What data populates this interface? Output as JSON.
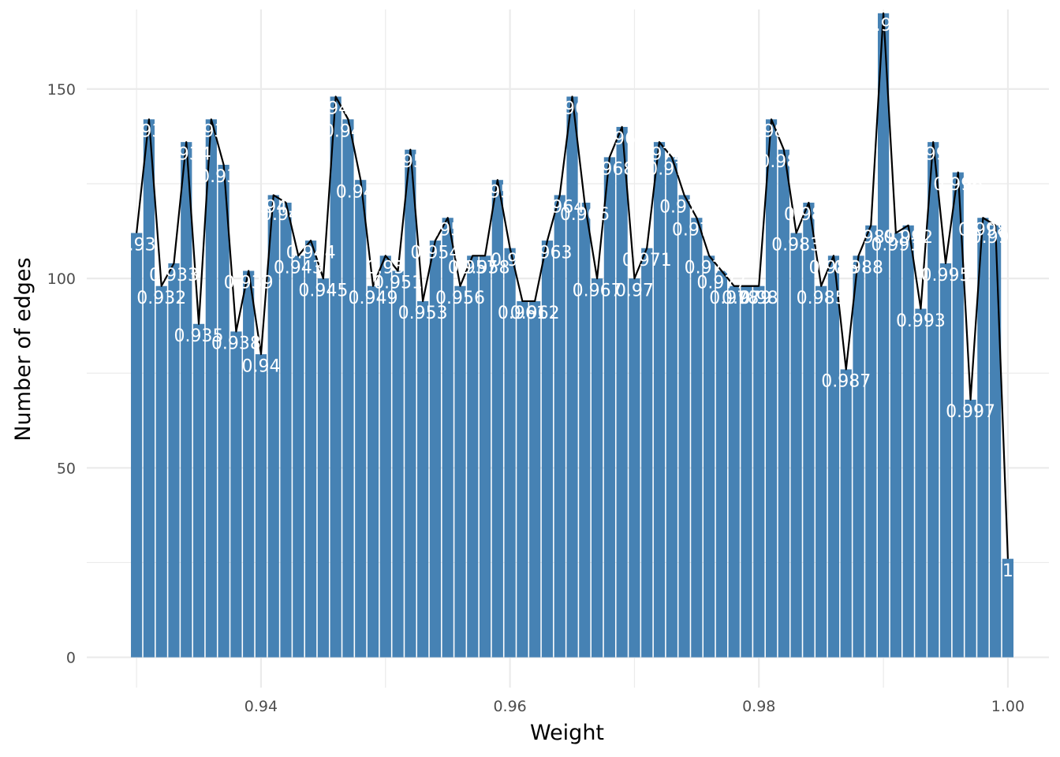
{
  "chart_data": {
    "type": "bar",
    "xlabel": "Weight",
    "ylabel": "Number of edges",
    "xlim": [
      0.926,
      1.0033
    ],
    "ylim": [
      -8,
      171
    ],
    "x_ticks": [
      0.94,
      0.96,
      0.98,
      1.0
    ],
    "x_tick_labels": [
      "0.94",
      "0.96",
      "0.98",
      "1.00"
    ],
    "y_ticks": [
      0,
      50,
      100,
      150
    ],
    "y_tick_labels": [
      "0",
      "50",
      "100",
      "150"
    ],
    "grid": true,
    "legend": "none",
    "bar_color": "#4682b4",
    "line_color": "#000000",
    "overlay": "line connecting bar tops",
    "data_labels": "bin weight printed in white at each bar top",
    "points": [
      {
        "x": 0.93,
        "y": 112,
        "label": "0.93"
      },
      {
        "x": 0.931,
        "y": 142,
        "label": "0.931"
      },
      {
        "x": 0.932,
        "y": 98,
        "label": "0.932"
      },
      {
        "x": 0.933,
        "y": 104,
        "label": "0.933"
      },
      {
        "x": 0.934,
        "y": 136,
        "label": "0.934"
      },
      {
        "x": 0.935,
        "y": 88,
        "label": "0.935"
      },
      {
        "x": 0.936,
        "y": 142,
        "label": "0.936"
      },
      {
        "x": 0.937,
        "y": 130,
        "label": "0.937"
      },
      {
        "x": 0.938,
        "y": 86,
        "label": "0.938"
      },
      {
        "x": 0.939,
        "y": 102,
        "label": "0.939"
      },
      {
        "x": 0.94,
        "y": 80,
        "label": "0.94"
      },
      {
        "x": 0.941,
        "y": 122,
        "label": "0.941"
      },
      {
        "x": 0.942,
        "y": 120,
        "label": "0.942"
      },
      {
        "x": 0.943,
        "y": 106,
        "label": "0.943"
      },
      {
        "x": 0.944,
        "y": 110,
        "label": "0.944"
      },
      {
        "x": 0.945,
        "y": 100,
        "label": "0.945"
      },
      {
        "x": 0.946,
        "y": 148,
        "label": "0.946"
      },
      {
        "x": 0.947,
        "y": 142,
        "label": "0.947"
      },
      {
        "x": 0.948,
        "y": 126,
        "label": "0.948"
      },
      {
        "x": 0.949,
        "y": 98,
        "label": "0.949"
      },
      {
        "x": 0.95,
        "y": 106,
        "label": "0.95"
      },
      {
        "x": 0.951,
        "y": 102,
        "label": "0.951"
      },
      {
        "x": 0.952,
        "y": 134,
        "label": "0.952"
      },
      {
        "x": 0.953,
        "y": 94,
        "label": "0.953"
      },
      {
        "x": 0.954,
        "y": 110,
        "label": "0.954"
      },
      {
        "x": 0.955,
        "y": 116,
        "label": "0.955"
      },
      {
        "x": 0.956,
        "y": 98,
        "label": "0.956"
      },
      {
        "x": 0.957,
        "y": 106,
        "label": "0.957"
      },
      {
        "x": 0.958,
        "y": 106,
        "label": "0.958"
      },
      {
        "x": 0.959,
        "y": 126,
        "label": "0.959"
      },
      {
        "x": 0.96,
        "y": 108,
        "label": "0.96"
      },
      {
        "x": 0.961,
        "y": 94,
        "label": "0.961"
      },
      {
        "x": 0.962,
        "y": 94,
        "label": "0.962"
      },
      {
        "x": 0.963,
        "y": 110,
        "label": "0.963"
      },
      {
        "x": 0.964,
        "y": 122,
        "label": "0.964"
      },
      {
        "x": 0.965,
        "y": 148,
        "label": "0.965"
      },
      {
        "x": 0.966,
        "y": 120,
        "label": "0.966"
      },
      {
        "x": 0.967,
        "y": 100,
        "label": "0.967"
      },
      {
        "x": 0.968,
        "y": 132,
        "label": "0.968"
      },
      {
        "x": 0.969,
        "y": 140,
        "label": "0.969"
      },
      {
        "x": 0.97,
        "y": 100,
        "label": "0.97"
      },
      {
        "x": 0.971,
        "y": 108,
        "label": "0.971"
      },
      {
        "x": 0.972,
        "y": 136,
        "label": "0.972"
      },
      {
        "x": 0.973,
        "y": 132,
        "label": "0.973"
      },
      {
        "x": 0.974,
        "y": 122,
        "label": "0.974"
      },
      {
        "x": 0.975,
        "y": 116,
        "label": "0.975"
      },
      {
        "x": 0.976,
        "y": 106,
        "label": "0.976"
      },
      {
        "x": 0.977,
        "y": 102,
        "label": "0.977"
      },
      {
        "x": 0.978,
        "y": 98,
        "label": "0.978"
      },
      {
        "x": 0.979,
        "y": 98,
        "label": "0.979"
      },
      {
        "x": 0.98,
        "y": 98,
        "label": "0.98"
      },
      {
        "x": 0.981,
        "y": 142,
        "label": "0.981"
      },
      {
        "x": 0.982,
        "y": 134,
        "label": "0.982"
      },
      {
        "x": 0.983,
        "y": 112,
        "label": "0.983"
      },
      {
        "x": 0.984,
        "y": 120,
        "label": "0.984"
      },
      {
        "x": 0.985,
        "y": 98,
        "label": "0.985"
      },
      {
        "x": 0.986,
        "y": 106,
        "label": "0.986"
      },
      {
        "x": 0.987,
        "y": 76,
        "label": "0.987"
      },
      {
        "x": 0.988,
        "y": 106,
        "label": "0.988"
      },
      {
        "x": 0.989,
        "y": 114,
        "label": "0.989"
      },
      {
        "x": 0.99,
        "y": 170,
        "label": "0.99"
      },
      {
        "x": 0.991,
        "y": 112,
        "label": "0.991"
      },
      {
        "x": 0.992,
        "y": 114,
        "label": "0.992"
      },
      {
        "x": 0.993,
        "y": 92,
        "label": "0.993"
      },
      {
        "x": 0.994,
        "y": 136,
        "label": "0.994"
      },
      {
        "x": 0.995,
        "y": 104,
        "label": "0.995"
      },
      {
        "x": 0.996,
        "y": 128,
        "label": "0.996"
      },
      {
        "x": 0.997,
        "y": 68,
        "label": "0.997"
      },
      {
        "x": 0.998,
        "y": 116,
        "label": "0.998"
      },
      {
        "x": 0.999,
        "y": 114,
        "label": "0.999"
      },
      {
        "x": 1.0,
        "y": 26,
        "label": "1"
      }
    ]
  }
}
